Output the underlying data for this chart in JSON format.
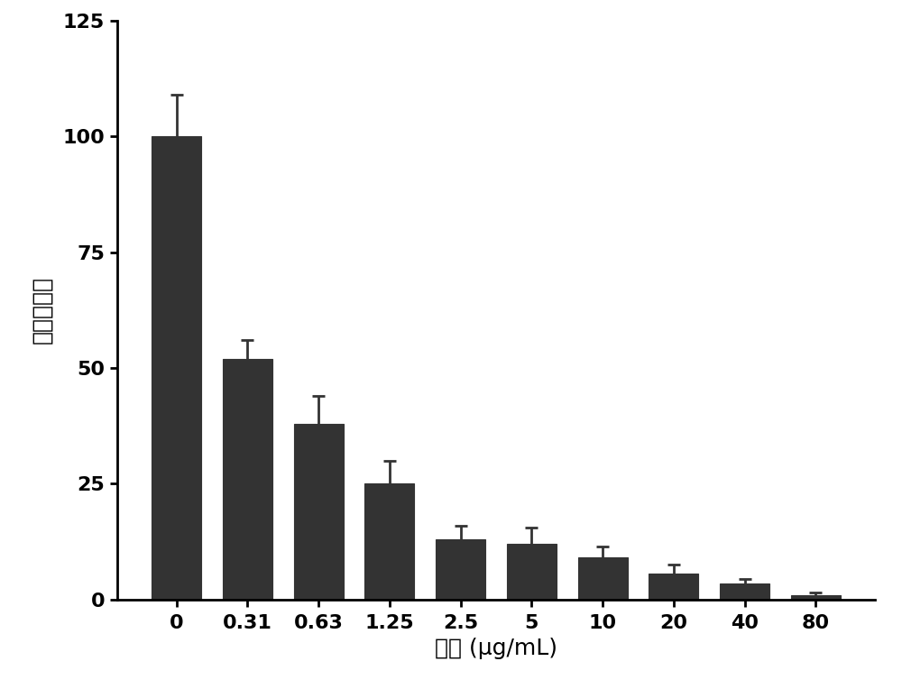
{
  "categories": [
    "0",
    "0.31",
    "0.63",
    "1.25",
    "2.5",
    "5",
    "10",
    "20",
    "40",
    "80"
  ],
  "values": [
    100,
    52,
    38,
    25,
    13,
    12,
    9,
    5.5,
    3.5,
    1
  ],
  "errors": [
    9,
    4,
    6,
    5,
    3,
    3.5,
    2.5,
    2,
    1,
    0.5
  ],
  "bar_color": "#333333",
  "bar_edgecolor": "#333333",
  "error_color": "#333333",
  "xlabel": "浓度 (μg/mL)",
  "ylabel": "生物膜含量",
  "ylim": [
    0,
    125
  ],
  "yticks": [
    0,
    25,
    50,
    75,
    100,
    125
  ],
  "background_color": "#ffffff",
  "bar_width": 0.7,
  "xlabel_fontsize": 18,
  "ylabel_fontsize": 18,
  "tick_fontsize": 16,
  "capsize": 5
}
